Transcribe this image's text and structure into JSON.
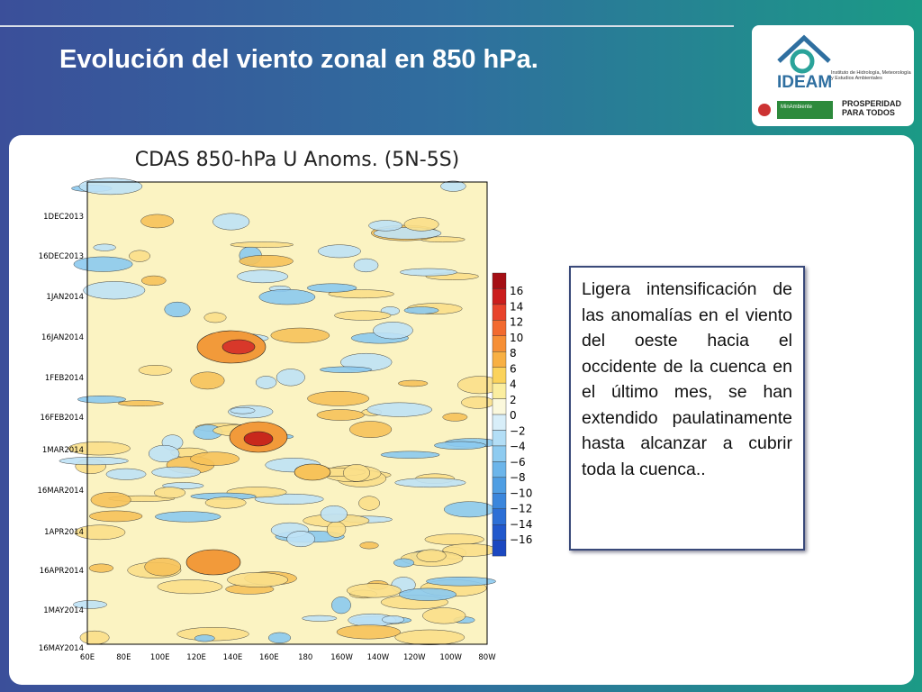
{
  "header": {
    "title": "Evolución del viento zonal en 850 hPa.",
    "logo": {
      "name": "IDEAM",
      "subtitle": "Instituto de Hidrología, Meteorología y Estudios Ambientales",
      "ministry": "MinAmbiente",
      "slogan": "PROSPERIDAD PARA TODOS"
    }
  },
  "figure": {
    "title": "CDAS 850-hPa U Anoms. (5N-5S)",
    "y_labels": [
      "1DEC2013",
      "16DEC2013",
      "1JAN2014",
      "16JAN2014",
      "1FEB2014",
      "16FEB2014",
      "1MAR2014",
      "16MAR2014",
      "1APR2014",
      "16APR2014",
      "1MAY2014",
      "16MAY2014"
    ],
    "x_labels": [
      "60E",
      "80E",
      "100E",
      "120E",
      "140E",
      "160E",
      "180",
      "160W",
      "140W",
      "120W",
      "100W",
      "80W"
    ],
    "colorbar_labels": [
      "16",
      "14",
      "12",
      "10",
      "8",
      "6",
      "4",
      "2",
      "0",
      "−2",
      "−4",
      "−6",
      "−8",
      "−10",
      "−12",
      "−14",
      "−16"
    ]
  },
  "note": {
    "text": "Ligera intensificación de las anomalías en el viento del oeste hacia el occidente de la cuenca en el último mes, se han extendido paulatinamente hasta alcanzar a cubrir toda la cuenca.."
  }
}
